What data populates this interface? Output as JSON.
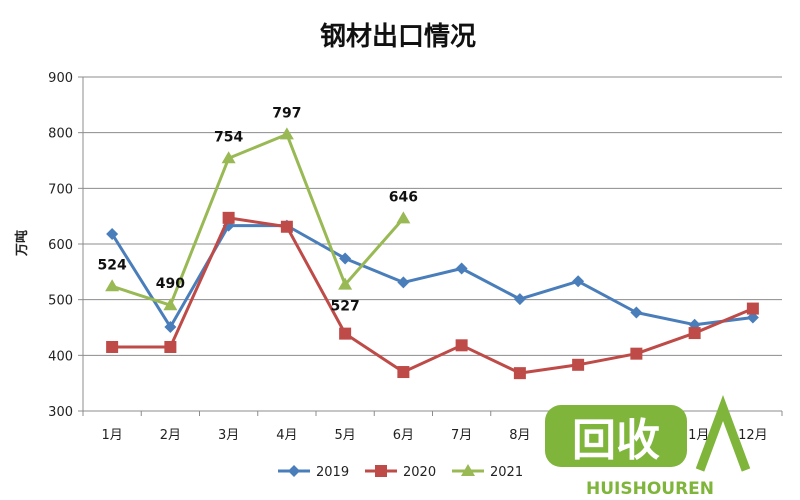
{
  "chart_data": {
    "type": "line",
    "title": "钢材出口情况",
    "ylabel": "万吨",
    "ylim": [
      300,
      900
    ],
    "yticks": [
      300,
      400,
      500,
      600,
      700,
      800,
      900
    ],
    "grid": true,
    "legend_position": "bottom",
    "categories": [
      "1月",
      "2月",
      "3月",
      "4月",
      "5月",
      "6月",
      "7月",
      "8月",
      "9月",
      "10月",
      "11月",
      "12月"
    ],
    "series": [
      {
        "name": "2019",
        "color": "#4a7ebb",
        "marker": "diamond",
        "values": [
          618,
          451,
          633,
          633,
          574,
          531,
          556,
          501,
          533,
          477,
          455,
          468
        ]
      },
      {
        "name": "2020",
        "color": "#be4b48",
        "marker": "square",
        "values": [
          415,
          415,
          647,
          631,
          439,
          370,
          418,
          368,
          383,
          403,
          440,
          484
        ]
      },
      {
        "name": "2021",
        "color": "#98b954",
        "marker": "triangle",
        "values": [
          524,
          490,
          754,
          797,
          527,
          646,
          null,
          null,
          null,
          null,
          null,
          null
        ]
      }
    ],
    "data_labels": [
      {
        "text": "524",
        "series": 2,
        "index": 0,
        "position": "above"
      },
      {
        "text": "490",
        "series": 2,
        "index": 1,
        "position": "above"
      },
      {
        "text": "754",
        "series": 2,
        "index": 2,
        "position": "above"
      },
      {
        "text": "797",
        "series": 2,
        "index": 3,
        "position": "above"
      },
      {
        "text": "527",
        "series": 2,
        "index": 4,
        "position": "below"
      },
      {
        "text": "646",
        "series": 2,
        "index": 5,
        "position": "above"
      }
    ]
  },
  "watermark": {
    "logo_text": "回收",
    "brand_text": "HUISHOUREN",
    "color": "#7fb53a"
  }
}
